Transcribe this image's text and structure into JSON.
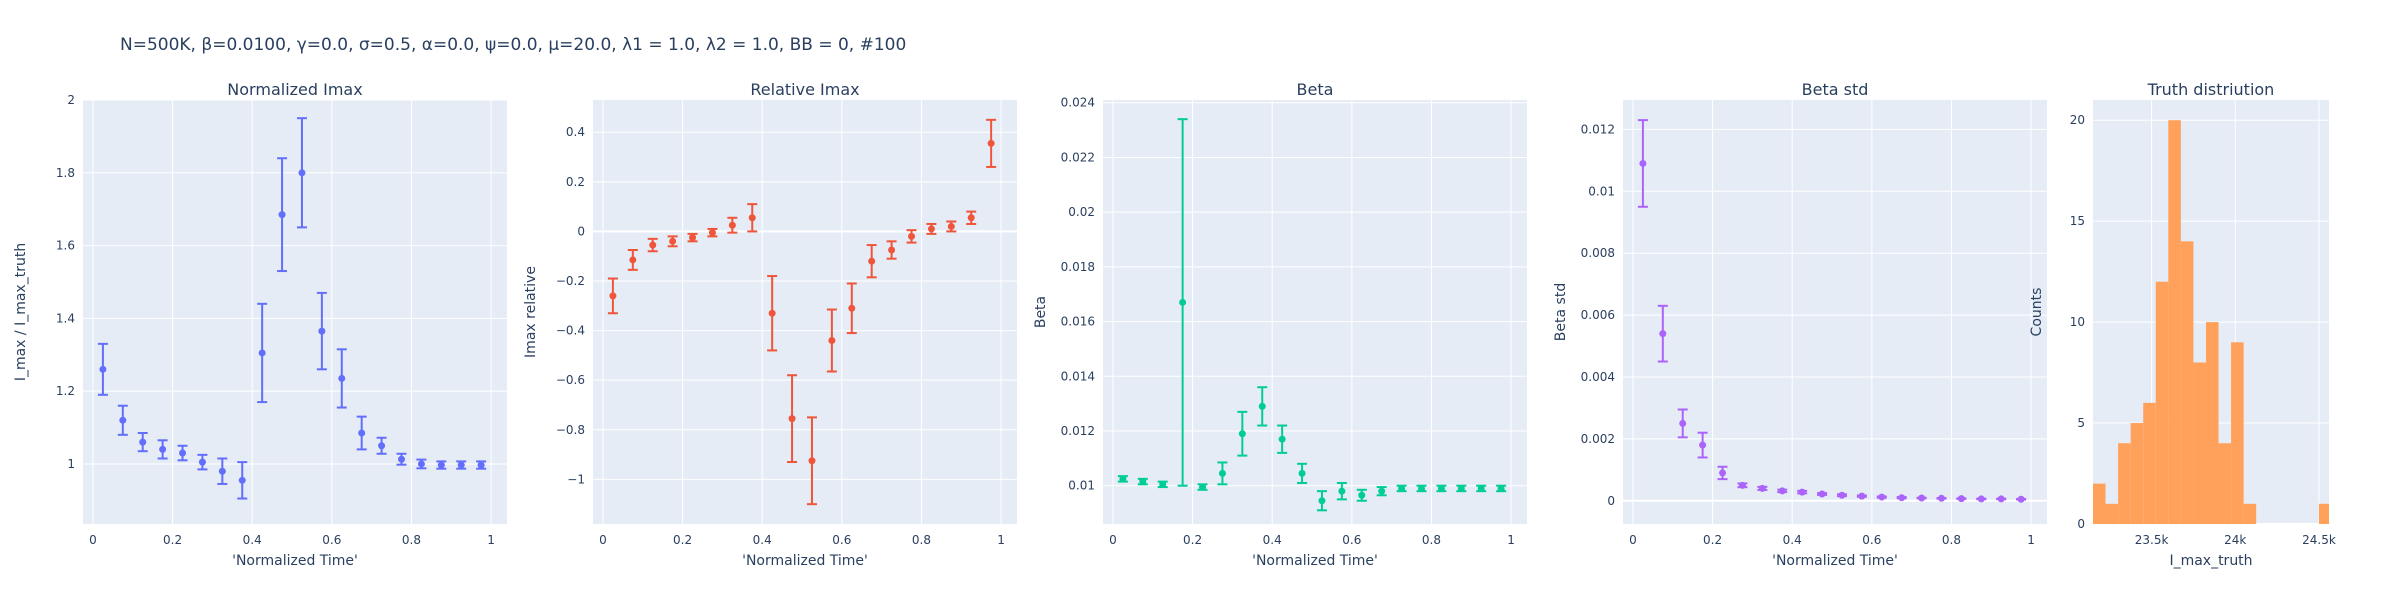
{
  "figure": {
    "title": "N=500K, β=0.0100, γ=0.0, σ=0.5,  α=0.0, ψ=0.0, μ=20.0, λ1 = 1.0, λ2 = 1.0, BB = 0, #100"
  },
  "chart_data": [
    {
      "type": "scatter",
      "title": "Normalized Imax",
      "xlabel": "'Normalized Time'",
      "ylabel": "I_max / I_max_truth",
      "color": "#636efa",
      "xlim": [
        -0.025,
        1.04
      ],
      "ylim": [
        0.835,
        2.0
      ],
      "xticks": [
        0,
        0.2,
        0.4,
        0.6,
        0.8,
        1
      ],
      "xticklabels": [
        "0",
        "0.2",
        "0.4",
        "0.6",
        "0.8",
        "1"
      ],
      "yticks": [
        1,
        1.2,
        1.4,
        1.6,
        1.8,
        2
      ],
      "yticklabels": [
        "1",
        "1.2",
        "1.4",
        "1.6",
        "1.8",
        "2"
      ],
      "x": [
        0.025,
        0.075,
        0.125,
        0.175,
        0.225,
        0.275,
        0.325,
        0.375,
        0.425,
        0.475,
        0.525,
        0.575,
        0.625,
        0.675,
        0.725,
        0.775,
        0.825,
        0.875,
        0.925,
        0.975
      ],
      "y": [
        1.26,
        1.12,
        1.06,
        1.04,
        1.03,
        1.005,
        0.98,
        0.955,
        1.305,
        1.685,
        1.8,
        1.365,
        1.235,
        1.085,
        1.05,
        1.013,
        1.0,
        0.997,
        0.997,
        0.997
      ],
      "err": [
        0.07,
        0.04,
        0.025,
        0.025,
        0.02,
        0.02,
        0.035,
        0.05,
        0.135,
        0.155,
        0.15,
        0.105,
        0.08,
        0.045,
        0.022,
        0.015,
        0.012,
        0.01,
        0.01,
        0.01
      ]
    },
    {
      "type": "scatter",
      "title": "Relative Imax",
      "xlabel": "'Normalized Time'",
      "ylabel": "Imax relative",
      "color": "#ef553b",
      "xlim": [
        -0.025,
        1.04
      ],
      "ylim": [
        -1.18,
        0.53
      ],
      "xticks": [
        0,
        0.2,
        0.4,
        0.6,
        0.8,
        1
      ],
      "xticklabels": [
        "0",
        "0.2",
        "0.4",
        "0.6",
        "0.8",
        "1"
      ],
      "yticks": [
        -1,
        -0.8,
        -0.6,
        -0.4,
        -0.2,
        0,
        0.2,
        0.4
      ],
      "yticklabels": [
        "−1",
        "−0.8",
        "−0.6",
        "−0.4",
        "−0.2",
        "0",
        "0.2",
        "0.4"
      ],
      "x": [
        0.025,
        0.075,
        0.125,
        0.175,
        0.225,
        0.275,
        0.325,
        0.375,
        0.425,
        0.475,
        0.525,
        0.575,
        0.625,
        0.675,
        0.725,
        0.775,
        0.825,
        0.875,
        0.925,
        0.975
      ],
      "y": [
        -0.26,
        -0.115,
        -0.055,
        -0.04,
        -0.025,
        -0.005,
        0.025,
        0.055,
        -0.33,
        -0.755,
        -0.925,
        -0.44,
        -0.31,
        -0.12,
        -0.075,
        -0.02,
        0.01,
        0.02,
        0.055,
        0.355
      ],
      "err": [
        0.07,
        0.04,
        0.025,
        0.02,
        0.015,
        0.015,
        0.03,
        0.055,
        0.15,
        0.175,
        0.175,
        0.125,
        0.1,
        0.065,
        0.035,
        0.025,
        0.02,
        0.02,
        0.025,
        0.095
      ]
    },
    {
      "type": "scatter",
      "title": "Beta",
      "xlabel": "'Normalized Time'",
      "ylabel": "Beta",
      "color": "#00cc96",
      "xlim": [
        -0.025,
        1.04
      ],
      "ylim": [
        0.0086,
        0.0241
      ],
      "xticks": [
        0,
        0.2,
        0.4,
        0.6,
        0.8,
        1
      ],
      "xticklabels": [
        "0",
        "0.2",
        "0.4",
        "0.6",
        "0.8",
        "1"
      ],
      "yticks": [
        0.01,
        0.012,
        0.014,
        0.016,
        0.018,
        0.02,
        0.022,
        0.024
      ],
      "yticklabels": [
        "0.01",
        "0.012",
        "0.014",
        "0.016",
        "0.018",
        "0.02",
        "0.022",
        "0.024"
      ],
      "x": [
        0.025,
        0.075,
        0.125,
        0.175,
        0.225,
        0.275,
        0.325,
        0.375,
        0.425,
        0.475,
        0.525,
        0.575,
        0.625,
        0.675,
        0.725,
        0.775,
        0.825,
        0.875,
        0.925,
        0.975
      ],
      "y": [
        0.01025,
        0.01015,
        0.01005,
        0.0167,
        0.00995,
        0.01045,
        0.0119,
        0.0129,
        0.0117,
        0.01045,
        0.00945,
        0.0098,
        0.00965,
        0.0098,
        0.0099,
        0.0099,
        0.0099,
        0.0099,
        0.0099,
        0.0099
      ],
      "err": [
        0.0001,
        0.0001,
        0.0001,
        0.0067,
        0.0001,
        0.0004,
        0.0008,
        0.0007,
        0.0005,
        0.00035,
        0.00035,
        0.0003,
        0.0002,
        0.00015,
        0.0001,
        0.0001,
        0.0001,
        0.0001,
        0.0001,
        0.0001
      ]
    },
    {
      "type": "scatter",
      "title": "Beta std",
      "xlabel": "'Normalized Time'",
      "ylabel": "Beta std",
      "color": "#ab63fa",
      "xlim": [
        -0.025,
        1.04
      ],
      "ylim": [
        -0.00075,
        0.01295
      ],
      "xticks": [
        0,
        0.2,
        0.4,
        0.6,
        0.8,
        1
      ],
      "xticklabels": [
        "0",
        "0.2",
        "0.4",
        "0.6",
        "0.8",
        "1"
      ],
      "yticks": [
        0,
        0.002,
        0.004,
        0.006,
        0.008,
        0.01,
        0.012
      ],
      "yticklabels": [
        "0",
        "0.002",
        "0.004",
        "0.006",
        "0.008",
        "0.01",
        "0.012"
      ],
      "x": [
        0.025,
        0.075,
        0.125,
        0.175,
        0.225,
        0.275,
        0.325,
        0.375,
        0.425,
        0.475,
        0.525,
        0.575,
        0.625,
        0.675,
        0.725,
        0.775,
        0.825,
        0.875,
        0.925,
        0.975
      ],
      "y": [
        0.0109,
        0.0054,
        0.0025,
        0.0018,
        0.0009,
        0.0005,
        0.0004,
        0.00032,
        0.00028,
        0.00022,
        0.00018,
        0.00015,
        0.00012,
        0.0001,
        9e-05,
        8e-05,
        7e-05,
        6e-05,
        6e-05,
        5e-05
      ],
      "err": [
        0.0014,
        0.0009,
        0.00045,
        0.0004,
        0.0002,
        6e-05,
        5e-05,
        4e-05,
        4e-05,
        3e-05,
        3e-05,
        2e-05,
        2e-05,
        2e-05,
        1e-05,
        1e-05,
        1e-05,
        1e-05,
        1e-05,
        1e-05
      ]
    },
    {
      "type": "bar",
      "title": "Truth distriution",
      "xlabel": "I_max_truth",
      "ylabel": "Counts",
      "color": "#ffa15a",
      "xlim": [
        23150,
        24560
      ],
      "ylim": [
        0,
        21
      ],
      "xticks": [
        23500,
        24000,
        24500
      ],
      "xticklabels": [
        "23.5k",
        "24k",
        "24.5k"
      ],
      "yticks": [
        0,
        5,
        10,
        15,
        20
      ],
      "yticklabels": [
        "0",
        "5",
        "10",
        "15",
        "20"
      ],
      "bin_width": 75,
      "bin_start": [
        23150,
        23225,
        23300,
        23375,
        23450,
        23525,
        23600,
        23675,
        23750,
        23825,
        23900,
        23975,
        24050,
        24125,
        24200,
        24275,
        24350,
        24425,
        24500
      ],
      "values": [
        2,
        1,
        4,
        5,
        6,
        12,
        20,
        14,
        8,
        10,
        4,
        9,
        1,
        0,
        0,
        0,
        0,
        0,
        1
      ]
    }
  ]
}
